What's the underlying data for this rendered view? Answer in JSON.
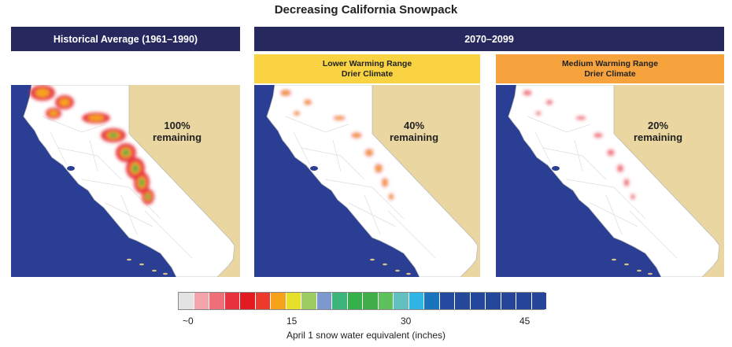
{
  "title": "Decreasing California Snowpack",
  "panels": [
    {
      "band": "Historical Average (1961–1990)",
      "remaining_value": "100%",
      "remaining_word": "remaining",
      "fraction": 1.0
    },
    {
      "band_shared": "2070–2099",
      "sub1": "Lower Warming Range",
      "sub2": "Drier Climate",
      "remaining_value": "40%",
      "remaining_word": "remaining",
      "fraction": 0.4
    },
    {
      "sub1": "Medium Warming Range",
      "sub2": "Drier Climate",
      "remaining_value": "20%",
      "remaining_word": "remaining",
      "fraction": 0.2
    }
  ],
  "colors": {
    "ocean": "#2a3f94",
    "nevada": "#ead6a0",
    "band": "#27295e",
    "lower_band": "#f9d342",
    "medium_band": "#f6a33e"
  },
  "legend": {
    "swatches": [
      "#e3e3e3",
      "#f3a4aa",
      "#ee6f78",
      "#e8323d",
      "#e31a22",
      "#ee3a2a",
      "#f6a31b",
      "#e6e02a",
      "#9ccc62",
      "#7b99cf",
      "#3cb57a",
      "#35b04a",
      "#3fae49",
      "#5ec15c",
      "#62c0c0",
      "#2eb5e5",
      "#1a74bd",
      "#234a9e",
      "#24479a",
      "#24469b",
      "#24469b",
      "#25459b",
      "#26449a",
      "#26449a"
    ],
    "ticks": [
      "~0",
      "15",
      "30",
      "45"
    ],
    "label": "April 1 snow water equivalent (inches)"
  }
}
